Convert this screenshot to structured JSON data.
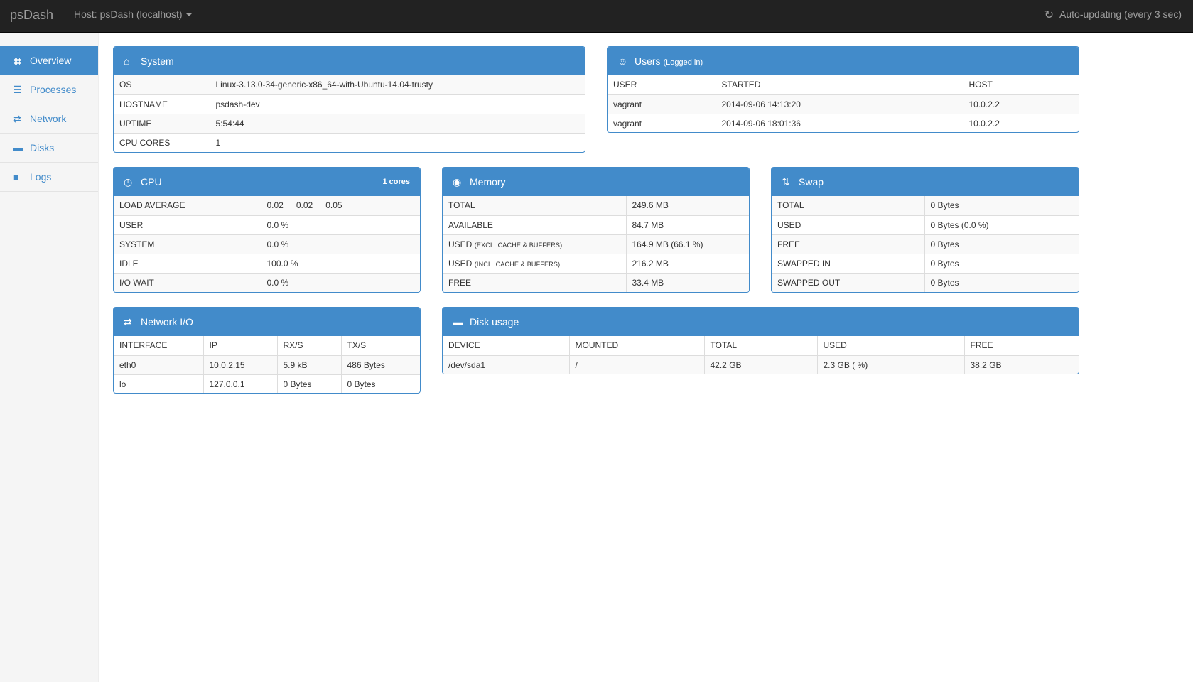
{
  "navbar": {
    "brand": "psDash",
    "host": "Host: psDash (localhost)",
    "autoupdate": "Auto-updating (every 3 sec)",
    "icons": {
      "host_dropdown": "caret-down-icon",
      "refresh": "refresh-icon"
    }
  },
  "sidebar": {
    "items": [
      {
        "label": "Overview",
        "icon": "dashboard-grid-icon",
        "active": true
      },
      {
        "label": "Processes",
        "icon": "list-icon",
        "active": false
      },
      {
        "label": "Network",
        "icon": "transfer-arrows-icon",
        "active": false
      },
      {
        "label": "Disks",
        "icon": "hdd-icon",
        "active": false
      },
      {
        "label": "Logs",
        "icon": "book-icon",
        "active": false
      }
    ]
  },
  "system": {
    "title": "System",
    "icon": "home-icon",
    "rows": [
      {
        "key": "OS",
        "value": "Linux-3.13.0-34-generic-x86_64-with-Ubuntu-14.04-trusty"
      },
      {
        "key": "HOSTNAME",
        "value": "psdash-dev"
      },
      {
        "key": "UPTIME",
        "value": "5:54:44"
      },
      {
        "key": "CPU CORES",
        "value": "1"
      }
    ]
  },
  "users": {
    "title": "Users",
    "subtitle": "(Logged in)",
    "icon": "user-icon",
    "columns": [
      "USER",
      "STARTED",
      "HOST"
    ],
    "rows": [
      [
        "vagrant",
        "2014-09-06 14:13:20",
        "10.0.2.2"
      ],
      [
        "vagrant",
        "2014-09-06 18:01:36",
        "10.0.2.2"
      ]
    ]
  },
  "cpu": {
    "title": "CPU",
    "cores_label": "1 cores",
    "icon": "dashboard-gauge-icon",
    "load_label": "LOAD AVERAGE",
    "load": [
      "0.02",
      "0.02",
      "0.05"
    ],
    "rows": [
      {
        "key": "USER",
        "value": "0.0 %"
      },
      {
        "key": "SYSTEM",
        "value": "0.0 %"
      },
      {
        "key": "IDLE",
        "value": "100.0 %"
      },
      {
        "key": "I/O WAIT",
        "value": "0.0 %"
      }
    ]
  },
  "memory": {
    "title": "Memory",
    "icon": "record-circle-icon",
    "rows": [
      {
        "key": "TOTAL",
        "sub": "",
        "value": "249.6 MB"
      },
      {
        "key": "AVAILABLE",
        "sub": "",
        "value": "84.7 MB"
      },
      {
        "key": "USED",
        "sub": "(EXCL. CACHE & BUFFERS)",
        "value": "164.9 MB (66.1 %)"
      },
      {
        "key": "USED",
        "sub": "(INCL. CACHE & BUFFERS)",
        "value": "216.2 MB"
      },
      {
        "key": "FREE",
        "sub": "",
        "value": "33.4 MB"
      }
    ]
  },
  "swap": {
    "title": "Swap",
    "icon": "transfer-icon",
    "rows": [
      {
        "key": "TOTAL",
        "value": "0 Bytes"
      },
      {
        "key": "USED",
        "value": "0 Bytes (0.0 %)"
      },
      {
        "key": "FREE",
        "value": "0 Bytes"
      },
      {
        "key": "SWAPPED IN",
        "value": "0 Bytes"
      },
      {
        "key": "SWAPPED OUT",
        "value": "0 Bytes"
      }
    ]
  },
  "network": {
    "title": "Network I/O",
    "icon": "transfer-arrows-icon",
    "columns": [
      "INTERFACE",
      "IP",
      "RX/S",
      "TX/S"
    ],
    "rows": [
      [
        "eth0",
        "10.0.2.15",
        "5.9 kB",
        "486 Bytes"
      ],
      [
        "lo",
        "127.0.0.1",
        "0 Bytes",
        "0 Bytes"
      ]
    ]
  },
  "disk": {
    "title": "Disk usage",
    "icon": "hdd-icon",
    "columns": [
      "DEVICE",
      "MOUNTED",
      "TOTAL",
      "USED",
      "FREE"
    ],
    "rows": [
      [
        "/dev/sda1",
        "/",
        "42.2 GB",
        "2.3 GB ( %)",
        "38.2 GB"
      ]
    ]
  },
  "colors": {
    "primary": "#428bca",
    "navbar": "#222222",
    "sidebar": "#f5f5f5"
  }
}
